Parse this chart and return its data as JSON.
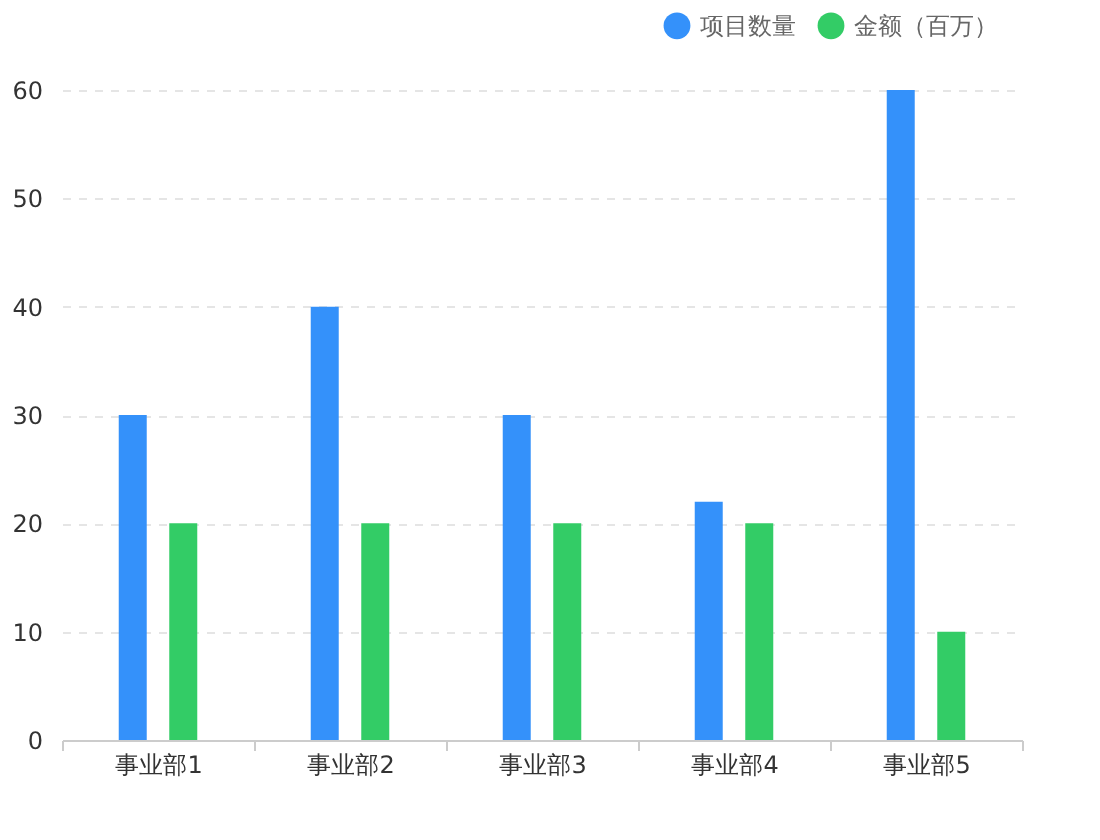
{
  "chart_data": {
    "type": "bar",
    "categories": [
      "事业部1",
      "事业部2",
      "事业部3",
      "事业部4",
      "事业部5"
    ],
    "series": [
      {
        "name": "项目数量",
        "color": "#3491fa",
        "values": [
          30,
          40,
          30,
          22,
          60
        ]
      },
      {
        "name": "金额（百万）",
        "color": "#33cc66",
        "values": [
          20,
          20,
          20,
          20,
          10
        ]
      }
    ],
    "ylim": [
      0,
      60
    ],
    "yticks": [
      0,
      10,
      20,
      30,
      40,
      50,
      60
    ],
    "grid": "y",
    "legend": "top right"
  }
}
